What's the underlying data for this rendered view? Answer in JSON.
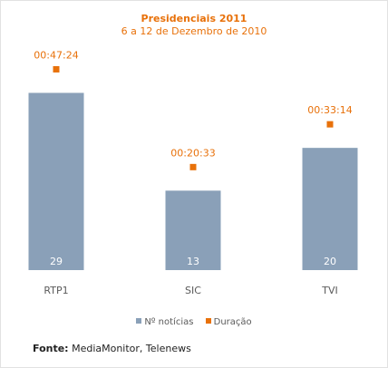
{
  "chart_data": {
    "type": "bar",
    "title": "Presidenciais 2011",
    "subtitle": "6 a 12 de Dezembro de 2010",
    "categories": [
      "RTP1",
      "SIC",
      "TVI"
    ],
    "series": [
      {
        "name": "Nº notícias",
        "values": [
          29,
          13,
          20
        ],
        "color": "#8aa0b8"
      },
      {
        "name": "Duração",
        "values": [
          "00:47:24",
          "00:20:33",
          "00:33:14"
        ],
        "color": "#e8710a"
      }
    ],
    "ylim": [
      0,
      35
    ],
    "grid": false,
    "legend_position": "bottom"
  },
  "source": {
    "label": "Fonte:",
    "text": "MediaMonitor, Telenews"
  }
}
